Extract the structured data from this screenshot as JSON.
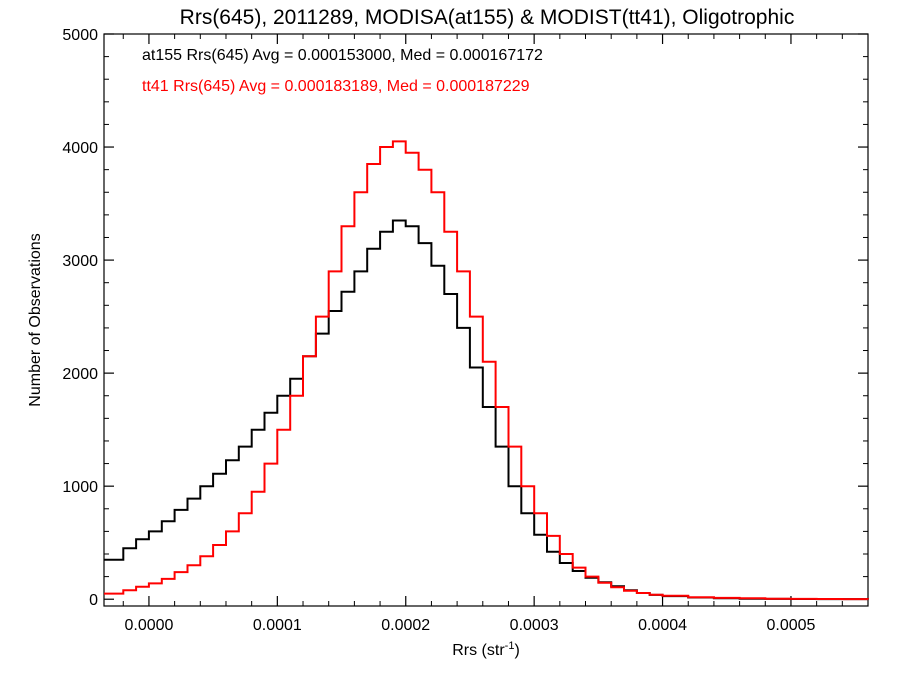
{
  "chart_data": {
    "type": "line",
    "title": "Rrs(645), 2011289, MODISA(at155) & MODIST(tt41), Oligotrophic",
    "xlabel_base": "Rrs (str",
    "xlabel_sup": "-1",
    "xlabel_close": ")",
    "ylabel": "Number of Observations",
    "xlim": [
      -3.5e-05,
      0.00056
    ],
    "ylim": [
      -60,
      5000
    ],
    "xticks": [
      0.0,
      0.0001,
      0.0002,
      0.0003,
      0.0004,
      0.0005
    ],
    "xtick_labels": [
      "0.0000",
      "0.0001",
      "0.0002",
      "0.0003",
      "0.0004",
      "0.0005"
    ],
    "yticks": [
      0,
      1000,
      2000,
      3000,
      4000,
      5000
    ],
    "ytick_labels": [
      "0",
      "1000",
      "2000",
      "3000",
      "4000",
      "5000"
    ],
    "grid": false,
    "legend_location": "top-left",
    "series": [
      {
        "name": "at155",
        "legend_text": "at155 Rrs(645) Avg = 0.000153000, Med = 0.000167172",
        "color": "#000000",
        "x": [
          -3.5e-05,
          -2e-05,
          -1e-05,
          0.0,
          1e-05,
          2e-05,
          3e-05,
          4e-05,
          5e-05,
          6e-05,
          7e-05,
          8e-05,
          9e-05,
          0.0001,
          0.00011,
          0.00012,
          0.00013,
          0.00014,
          0.00015,
          0.00016,
          0.00017,
          0.00018,
          0.00019,
          0.0002,
          0.00021,
          0.00022,
          0.00023,
          0.00024,
          0.00025,
          0.00026,
          0.00027,
          0.00028,
          0.00029,
          0.0003,
          0.00031,
          0.00032,
          0.00033,
          0.00034,
          0.00035,
          0.00036,
          0.00037,
          0.00038,
          0.00039,
          0.0004,
          0.00042,
          0.00044,
          0.00046,
          0.00048,
          0.0005,
          0.00052,
          0.00054,
          0.00056
        ],
        "y": [
          350,
          450,
          530,
          600,
          690,
          790,
          890,
          1000,
          1110,
          1230,
          1350,
          1500,
          1650,
          1800,
          1950,
          2150,
          2350,
          2550,
          2720,
          2900,
          3100,
          3250,
          3350,
          3300,
          3150,
          2950,
          2700,
          2400,
          2050,
          1700,
          1350,
          1000,
          760,
          570,
          420,
          320,
          250,
          190,
          150,
          115,
          80,
          55,
          38,
          28,
          15,
          9,
          5,
          3,
          2,
          1,
          1,
          0
        ]
      },
      {
        "name": "tt41",
        "legend_text": "tt41 Rrs(645) Avg = 0.000183189, Med = 0.000187229",
        "color": "#ff0000",
        "x": [
          -3.5e-05,
          -2e-05,
          -1e-05,
          0.0,
          1e-05,
          2e-05,
          3e-05,
          4e-05,
          5e-05,
          6e-05,
          7e-05,
          8e-05,
          9e-05,
          0.0001,
          0.00011,
          0.00012,
          0.00013,
          0.00014,
          0.00015,
          0.00016,
          0.00017,
          0.00018,
          0.00019,
          0.0002,
          0.00021,
          0.00022,
          0.00023,
          0.00024,
          0.00025,
          0.00026,
          0.00027,
          0.00028,
          0.00029,
          0.0003,
          0.00031,
          0.00032,
          0.00033,
          0.00034,
          0.00035,
          0.00036,
          0.00037,
          0.00038,
          0.00039,
          0.0004,
          0.00042,
          0.00044,
          0.00046,
          0.00048,
          0.0005,
          0.00052,
          0.00054,
          0.00056
        ],
        "y": [
          50,
          80,
          110,
          140,
          180,
          240,
          300,
          380,
          480,
          600,
          760,
          950,
          1200,
          1500,
          1800,
          2150,
          2500,
          2900,
          3300,
          3600,
          3850,
          4000,
          4050,
          3950,
          3800,
          3600,
          3250,
          2900,
          2500,
          2100,
          1700,
          1350,
          1000,
          760,
          560,
          400,
          280,
          200,
          145,
          105,
          75,
          55,
          40,
          30,
          18,
          12,
          8,
          5,
          3,
          2,
          1,
          0
        ]
      }
    ]
  }
}
